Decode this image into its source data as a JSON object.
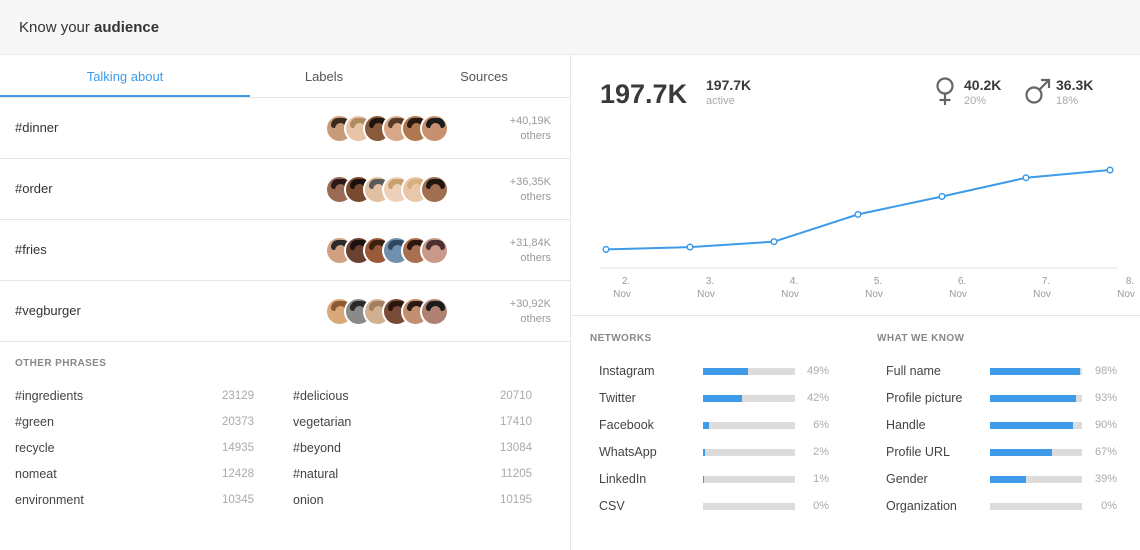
{
  "header": {
    "title_prefix": "Know your ",
    "title_bold": "audience"
  },
  "tabs": [
    {
      "label": "Talking about",
      "active": true
    },
    {
      "label": "Labels",
      "active": false
    },
    {
      "label": "Sources",
      "active": false
    }
  ],
  "topics": [
    {
      "tag": "#dinner",
      "count": "+40,19K",
      "others": "others",
      "avatars": [
        {
          "skin": "#c99a7a",
          "hair": "#3a2a20"
        },
        {
          "skin": "#e7c4a8",
          "hair": "#b08a60"
        },
        {
          "skin": "#8a5a3c",
          "hair": "#1f1510"
        },
        {
          "skin": "#d8a788",
          "hair": "#5a3a28"
        },
        {
          "skin": "#b07850",
          "hair": "#2a1a12"
        },
        {
          "skin": "#c89070",
          "hair": "#1c1c1c"
        }
      ]
    },
    {
      "tag": "#order",
      "count": "+36,35K",
      "others": "others",
      "avatars": [
        {
          "skin": "#9a6a55",
          "hair": "#2a1a1a"
        },
        {
          "skin": "#7a4a30",
          "hair": "#1a1010"
        },
        {
          "skin": "#e0c0a0",
          "hair": "#5a5a5a"
        },
        {
          "skin": "#eed0b8",
          "hair": "#c8a070"
        },
        {
          "skin": "#e8c8a8",
          "hair": "#d8b080"
        },
        {
          "skin": "#a07050",
          "hair": "#201510"
        }
      ]
    },
    {
      "tag": "#fries",
      "count": "+31,84K",
      "others": "others",
      "avatars": [
        {
          "skin": "#d0a080",
          "hair": "#2a2a2a"
        },
        {
          "skin": "#6a4030",
          "hair": "#1a1010"
        },
        {
          "skin": "#9a5a38",
          "hair": "#3a2010"
        },
        {
          "skin": "#7090b0",
          "hair": "#304860"
        },
        {
          "skin": "#a87050",
          "hair": "#2a1810"
        },
        {
          "skin": "#c89888",
          "hair": "#4a3030"
        }
      ]
    },
    {
      "tag": "#vegburger",
      "count": "+30,92K",
      "others": "others",
      "avatars": [
        {
          "skin": "#d8a878",
          "hair": "#8a5a30"
        },
        {
          "skin": "#8a8a8a",
          "hair": "#2a2a2a"
        },
        {
          "skin": "#d0b090",
          "hair": "#a08060"
        },
        {
          "skin": "#7a4a38",
          "hair": "#2a1510"
        },
        {
          "skin": "#c09070",
          "hair": "#2a1a10"
        },
        {
          "skin": "#b08070",
          "hair": "#1a1a1a"
        }
      ]
    }
  ],
  "other_phrases": {
    "label": "OTHER PHRASES",
    "left": [
      {
        "text": "#ingredients",
        "num": "23129"
      },
      {
        "text": "#green",
        "num": "20373"
      },
      {
        "text": "recycle",
        "num": "14935"
      },
      {
        "text": "nomeat",
        "num": "12428"
      },
      {
        "text": "environment",
        "num": "10345"
      }
    ],
    "right": [
      {
        "text": "#delicious",
        "num": "20710"
      },
      {
        "text": "vegetarian",
        "num": "17410"
      },
      {
        "text": "#beyond",
        "num": "13084"
      },
      {
        "text": "#natural",
        "num": "11205"
      },
      {
        "text": "onion",
        "num": "10195"
      }
    ]
  },
  "stats": {
    "total": "197.7K",
    "active_value": "197.7K",
    "active_label": "active",
    "female_value": "40.2K",
    "female_pct": "20%",
    "male_value": "36.3K",
    "male_pct": "18%"
  },
  "chart_data": {
    "type": "line",
    "x": [
      "2. Nov",
      "3. Nov",
      "4. Nov",
      "5. Nov",
      "6. Nov",
      "7. Nov",
      "8. Nov"
    ],
    "x_top": [
      "2.",
      "3.",
      "4.",
      "5.",
      "6.",
      "7.",
      "8."
    ],
    "x_bottom": [
      "Nov",
      "Nov",
      "Nov",
      "Nov",
      "Nov",
      "Nov",
      "Nov"
    ],
    "values": [
      0.2,
      0.23,
      0.3,
      0.65,
      0.88,
      1.12,
      1.22
    ],
    "ylim": [
      0,
      1.4
    ],
    "color": "#3d9be9",
    "grid": false
  },
  "networks": {
    "label": "NETWORKS",
    "items": [
      {
        "name": "Instagram",
        "pct": 49,
        "pct_label": "49%"
      },
      {
        "name": "Twitter",
        "pct": 42,
        "pct_label": "42%"
      },
      {
        "name": "Facebook",
        "pct": 6,
        "pct_label": "6%"
      },
      {
        "name": "WhatsApp",
        "pct": 2,
        "pct_label": "2%"
      },
      {
        "name": "LinkedIn",
        "pct": 1,
        "pct_label": "1%"
      },
      {
        "name": "CSV",
        "pct": 0,
        "pct_label": "0%"
      }
    ]
  },
  "what_we_know": {
    "label": "WHAT WE KNOW",
    "items": [
      {
        "name": "Full name",
        "pct": 98,
        "pct_label": "98%"
      },
      {
        "name": "Profile picture",
        "pct": 93,
        "pct_label": "93%"
      },
      {
        "name": "Handle",
        "pct": 90,
        "pct_label": "90%"
      },
      {
        "name": "Profile URL",
        "pct": 67,
        "pct_label": "67%"
      },
      {
        "name": "Gender",
        "pct": 39,
        "pct_label": "39%"
      },
      {
        "name": "Organization",
        "pct": 0,
        "pct_label": "0%"
      }
    ]
  },
  "colors": {
    "accent": "#3d9be9",
    "track": "#dcdcdc"
  }
}
